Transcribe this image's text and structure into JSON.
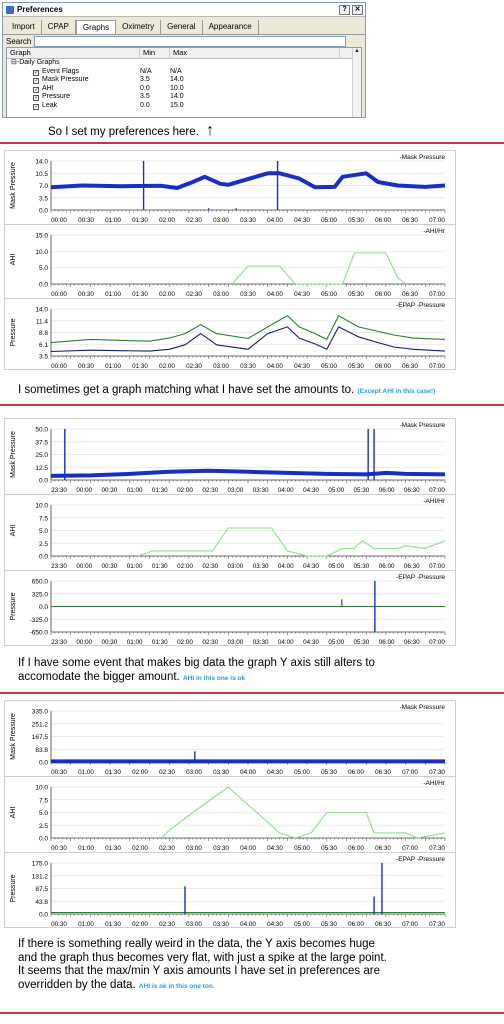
{
  "dialog": {
    "title": "Preferences",
    "tabs": [
      "Import",
      "CPAP",
      "Graphs",
      "Oximetry",
      "General",
      "Appearance"
    ],
    "active_tab": "Graphs",
    "search_label": "Search",
    "columns": [
      "Graph",
      "Min",
      "Max"
    ],
    "group": "Daily Graphs",
    "rows": [
      {
        "name": "Event Flags",
        "min": "N/A",
        "max": "N/A"
      },
      {
        "name": "Mask Pressure",
        "min": "3.5",
        "max": "14.0"
      },
      {
        "name": "AHI",
        "min": "0.0",
        "max": "10.0"
      },
      {
        "name": "Pressure",
        "min": "3.5",
        "max": "14.0"
      },
      {
        "name": "Leak",
        "min": "0.0",
        "max": "15.0"
      }
    ]
  },
  "captions": {
    "c1": "So I set my preferences here.",
    "c1_arrow": "↑",
    "c2": "I sometimes get a graph matching what I have set the amounts to.",
    "c2_note": "(Except AHI in this case!)",
    "c3_line1": "If I have some event that makes big data the graph Y axis still alters to",
    "c3_line2": "accomodate the bigger amount.",
    "c3_note": "AHI in this one is ok",
    "c4_line1": "If there is something really weird in the data, the Y axis becomes huge",
    "c4_line2": "and the graph thus becomes very flat, with just a spike at the large point.",
    "c4_line3": "It seems that the max/min Y axis amounts I have set in preferences are",
    "c4_line4": "overridden by the data.",
    "c4_note": "AHI is ok in this one too."
  },
  "colors": {
    "mask": "#1a2fbf",
    "ahi": "#8fdc8f",
    "epap": "#1b1b6e",
    "pressure": "#2e7d32",
    "divider": "#c8324a"
  },
  "chart_data": [
    {
      "type": "line",
      "id": "s1-mask",
      "ylabel": "Mask Pressure",
      "legend": [
        "Mask Pressure"
      ],
      "yticks": [
        "14.0",
        "10.5",
        "7.0",
        "3.5",
        "0.0"
      ],
      "ylim": [
        0,
        14
      ],
      "xticks": [
        "00:00",
        "00:30",
        "01:00",
        "01:30",
        "02:00",
        "02:30",
        "03:00",
        "03:30",
        "04:00",
        "04:30",
        "05:00",
        "05:30",
        "06:00",
        "06:30",
        "07:00"
      ],
      "series": [
        {
          "name": "Mask Pressure",
          "x": [
            0,
            0.08,
            0.18,
            0.28,
            0.32,
            0.36,
            0.39,
            0.43,
            0.45,
            0.55,
            0.58,
            0.63,
            0.67,
            0.72,
            0.74,
            0.8,
            0.83,
            0.88,
            0.95,
            1.0
          ],
          "y": [
            6.5,
            7.0,
            6.8,
            6.9,
            6.3,
            8.0,
            9.5,
            7.5,
            7.2,
            10.5,
            10.5,
            9.0,
            6.5,
            6.6,
            9.5,
            10.5,
            8.0,
            7.0,
            6.6,
            7.0
          ]
        }
      ],
      "spikes": [
        {
          "x": 0.235,
          "y": 14.0
        },
        {
          "x": 0.575,
          "y": 14.0
        },
        {
          "x": 0.4,
          "y": 0.5
        },
        {
          "x": 0.47,
          "y": 0.5
        }
      ]
    },
    {
      "type": "line",
      "id": "s1-ahi",
      "ylabel": "AHI",
      "legend": [
        "AHI/Hr"
      ],
      "yticks": [
        "15.0",
        "10.0",
        "5.0",
        "0.0"
      ],
      "ylim": [
        0,
        15
      ],
      "xticks": [
        "00:00",
        "00:30",
        "01:00",
        "01:30",
        "02:00",
        "02:30",
        "03:00",
        "03:30",
        "04:00",
        "04:30",
        "05:00",
        "05:30",
        "06:00",
        "06:30",
        "07:00"
      ],
      "series": [
        {
          "name": "AHI/Hr",
          "x": [
            0.46,
            0.5,
            0.58,
            0.62,
            0.74,
            0.77,
            0.85,
            0.88,
            0.9
          ],
          "y": [
            0,
            5.5,
            5.5,
            0,
            0,
            9.5,
            9.5,
            2.0,
            0
          ]
        }
      ]
    },
    {
      "type": "line",
      "id": "s1-pressure",
      "ylabel": "Pressure",
      "legend": [
        "EPAP",
        "Pressure"
      ],
      "yticks": [
        "14.0",
        "11.4",
        "8.8",
        "6.1",
        "3.5"
      ],
      "ylim": [
        3.5,
        14
      ],
      "xticks": [
        "00:00",
        "00:30",
        "01:00",
        "01:30",
        "02:00",
        "02:30",
        "03:00",
        "03:30",
        "04:00",
        "04:30",
        "05:00",
        "05:30",
        "06:00",
        "06:30",
        "07:00"
      ],
      "series": [
        {
          "name": "Pressure",
          "x": [
            0,
            0.1,
            0.25,
            0.3,
            0.34,
            0.38,
            0.42,
            0.5,
            0.55,
            0.6,
            0.63,
            0.67,
            0.7,
            0.73,
            0.78,
            0.83,
            0.87,
            0.92,
            1.0
          ],
          "y": [
            6.5,
            7.2,
            6.8,
            7.5,
            8.5,
            10.5,
            8.5,
            7.4,
            10.0,
            12.5,
            10.0,
            8.5,
            7.2,
            12.5,
            10.0,
            9.0,
            8.2,
            7.5,
            7.2
          ]
        },
        {
          "name": "EPAP",
          "x": [
            0,
            0.1,
            0.25,
            0.3,
            0.34,
            0.38,
            0.42,
            0.5,
            0.55,
            0.6,
            0.63,
            0.67,
            0.7,
            0.73,
            0.78,
            0.83,
            0.87,
            0.92,
            1.0
          ],
          "y": [
            4.5,
            4.8,
            4.6,
            5.0,
            6.0,
            8.5,
            6.0,
            5.0,
            8.5,
            10.0,
            7.5,
            6.2,
            5.0,
            10.0,
            7.8,
            6.5,
            5.5,
            5.0,
            4.6
          ]
        }
      ]
    },
    {
      "type": "line",
      "id": "s2-mask",
      "ylabel": "Mask Pressure",
      "legend": [
        "Mask Pressure"
      ],
      "yticks": [
        "50.0",
        "37.5",
        "25.0",
        "12.5",
        "0.0"
      ],
      "ylim": [
        0,
        50
      ],
      "xticks": [
        "23:30",
        "00:00",
        "00:30",
        "01:00",
        "01:30",
        "02:00",
        "02:30",
        "03:00",
        "03:30",
        "04:00",
        "04:30",
        "05:00",
        "05:30",
        "06:00",
        "06:30",
        "07:00"
      ],
      "series": [
        {
          "name": "Mask Pressure",
          "x": [
            0,
            0.1,
            0.2,
            0.3,
            0.4,
            0.5,
            0.6,
            0.7,
            0.8,
            0.85,
            0.9,
            1.0
          ],
          "y": [
            4.0,
            4.5,
            6.0,
            8.0,
            9.0,
            8.0,
            7.0,
            6.0,
            5.5,
            7.0,
            6.0,
            5.5
          ]
        }
      ],
      "spikes": [
        {
          "x": 0.035,
          "y": 50.0
        },
        {
          "x": 0.805,
          "y": 50.0
        },
        {
          "x": 0.82,
          "y": 50.0
        }
      ]
    },
    {
      "type": "line",
      "id": "s2-ahi",
      "ylabel": "AHI",
      "legend": [
        "AHI/Hr"
      ],
      "yticks": [
        "10.0",
        "7.5",
        "5.0",
        "2.5",
        "0.0"
      ],
      "ylim": [
        0,
        10
      ],
      "xticks": [
        "23:30",
        "00:00",
        "00:30",
        "01:00",
        "01:30",
        "02:00",
        "02:30",
        "03:00",
        "03:30",
        "04:00",
        "04:30",
        "05:00",
        "05:30",
        "06:00",
        "06:30",
        "07:00"
      ],
      "series": [
        {
          "name": "AHI/Hr",
          "x": [
            0.22,
            0.26,
            0.41,
            0.45,
            0.56,
            0.6,
            0.65,
            0.7,
            0.74,
            0.77,
            0.79,
            0.82,
            0.88,
            0.9,
            0.95,
            1.0
          ],
          "y": [
            0,
            1.0,
            1.0,
            5.5,
            5.5,
            1.0,
            0,
            0,
            1.5,
            1.5,
            3.0,
            1.5,
            1.5,
            2.0,
            1.5,
            3.0
          ]
        }
      ]
    },
    {
      "type": "line",
      "id": "s2-pressure",
      "ylabel": "Pressure",
      "legend": [
        "EPAP",
        "Pressure"
      ],
      "yticks": [
        "650.0",
        "325.0",
        "0.0",
        "-325.0",
        "-650.0"
      ],
      "ylim": [
        -650,
        650
      ],
      "xticks": [
        "23:30",
        "00:00",
        "00:30",
        "01:00",
        "01:30",
        "02:00",
        "02:30",
        "03:00",
        "03:30",
        "04:00",
        "04:30",
        "05:00",
        "05:30",
        "06:00",
        "06:30",
        "07:00"
      ],
      "series": [
        {
          "name": "Pressure",
          "x": [
            0,
            1.0
          ],
          "y": [
            0,
            0
          ]
        }
      ],
      "spikes": [
        {
          "x": 0.738,
          "y": 180
        },
        {
          "x": 0.822,
          "y": 650
        },
        {
          "x": 0.822,
          "y": -650
        }
      ]
    },
    {
      "type": "line",
      "id": "s3-mask",
      "ylabel": "Mask Pressure",
      "legend": [
        "Mask Pressure"
      ],
      "yticks": [
        "335.0",
        "251.2",
        "167.5",
        "83.8",
        "0.0"
      ],
      "ylim": [
        0,
        335
      ],
      "xticks": [
        "00:30",
        "01:00",
        "01:30",
        "02:00",
        "02:30",
        "03:00",
        "03:30",
        "04:00",
        "04:30",
        "05:00",
        "05:30",
        "06:00",
        "06:30",
        "07:00",
        "07:30"
      ],
      "series": [
        {
          "name": "Mask Pressure",
          "x": [
            0,
            1.0
          ],
          "y": [
            4,
            4
          ]
        }
      ],
      "spikes": [
        {
          "x": 0.365,
          "y": 70
        }
      ]
    },
    {
      "type": "line",
      "id": "s3-ahi",
      "ylabel": "AHI",
      "legend": [
        "AHI/Hr"
      ],
      "yticks": [
        "10.0",
        "7.5",
        "5.0",
        "2.5",
        "0.0"
      ],
      "ylim": [
        0,
        10
      ],
      "xticks": [
        "00:30",
        "01:00",
        "01:30",
        "02:00",
        "02:30",
        "03:00",
        "03:30",
        "04:00",
        "04:30",
        "05:00",
        "05:30",
        "06:00",
        "06:30",
        "07:00",
        "07:30"
      ],
      "series": [
        {
          "name": "AHI/Hr",
          "x": [
            0.28,
            0.3,
            0.36,
            0.45,
            0.5,
            0.53,
            0.58,
            0.62,
            0.66,
            0.7,
            0.72,
            0.8,
            0.82,
            0.9,
            0.93,
            1.0
          ],
          "y": [
            0,
            1.5,
            5.0,
            10.0,
            6.5,
            4.5,
            1.0,
            0,
            1.0,
            5.0,
            5.0,
            5.0,
            1.0,
            1.0,
            0,
            1.0
          ]
        }
      ]
    },
    {
      "type": "line",
      "id": "s3-pressure",
      "ylabel": "Pressure",
      "legend": [
        "EPAP",
        "Pressure"
      ],
      "yticks": [
        "175.0",
        "131.2",
        "87.5",
        "43.8",
        "0.0"
      ],
      "ylim": [
        0,
        175
      ],
      "xticks": [
        "00:30",
        "01:00",
        "01:30",
        "02:00",
        "02:30",
        "03:00",
        "03:30",
        "04:00",
        "04:30",
        "05:00",
        "05:30",
        "06:00",
        "06:30",
        "07:00",
        "07:30"
      ],
      "series": [
        {
          "name": "Pressure",
          "x": [
            0,
            1.0
          ],
          "y": [
            5,
            5
          ]
        }
      ],
      "spikes": [
        {
          "x": 0.34,
          "y": 95
        },
        {
          "x": 0.82,
          "y": 60
        },
        {
          "x": 0.84,
          "y": 175
        }
      ]
    }
  ]
}
